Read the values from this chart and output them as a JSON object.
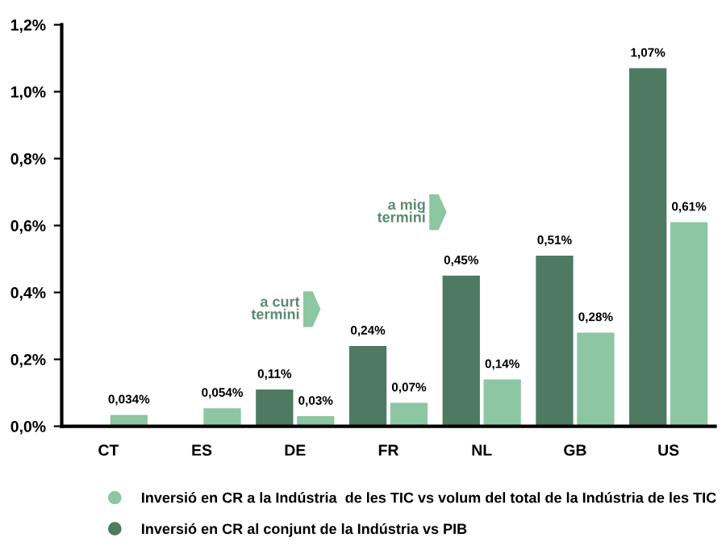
{
  "chart_data": {
    "type": "bar",
    "categories": [
      "CT",
      "ES",
      "DE",
      "FR",
      "NL",
      "GB",
      "US"
    ],
    "series": [
      {
        "name": "Inversió en CR a la Indústria  de les TIC vs volum del total de la Indústria de les TIC",
        "color": "#8cc6a2",
        "values": [
          0.034,
          0.054,
          0.03,
          0.07,
          0.14,
          0.28,
          0.61
        ],
        "value_labels": [
          "0,034%",
          "0,054%",
          "0,03%",
          "0,07%",
          "0,14%",
          "0,28%",
          "0,61%"
        ]
      },
      {
        "name": "Inversió en CR al conjunt de la Indústria vs PIB",
        "color": "#4e7a62",
        "values": [
          null,
          null,
          0.11,
          0.24,
          0.45,
          0.51,
          1.07
        ],
        "value_labels": [
          null,
          null,
          "0,11%",
          "0,24%",
          "0,45%",
          "0,51%",
          "1,07%"
        ]
      }
    ],
    "ylim": [
      0,
      1.2
    ],
    "yticks": [
      {
        "value": 0,
        "label": "0,0%"
      },
      {
        "value": 0.2,
        "label": "0,2%"
      },
      {
        "value": 0.4,
        "label": "0,4%"
      },
      {
        "value": 0.6,
        "label": "0,6%"
      },
      {
        "value": 0.8,
        "label": "0,8%"
      },
      {
        "value": 1.0,
        "label": "1,0%"
      },
      {
        "value": 1.2,
        "label": "1,2%"
      }
    ],
    "annotations": [
      "a curt\ntermini",
      "a mig\ntermini"
    ],
    "grid": false,
    "legend": "bottom"
  }
}
